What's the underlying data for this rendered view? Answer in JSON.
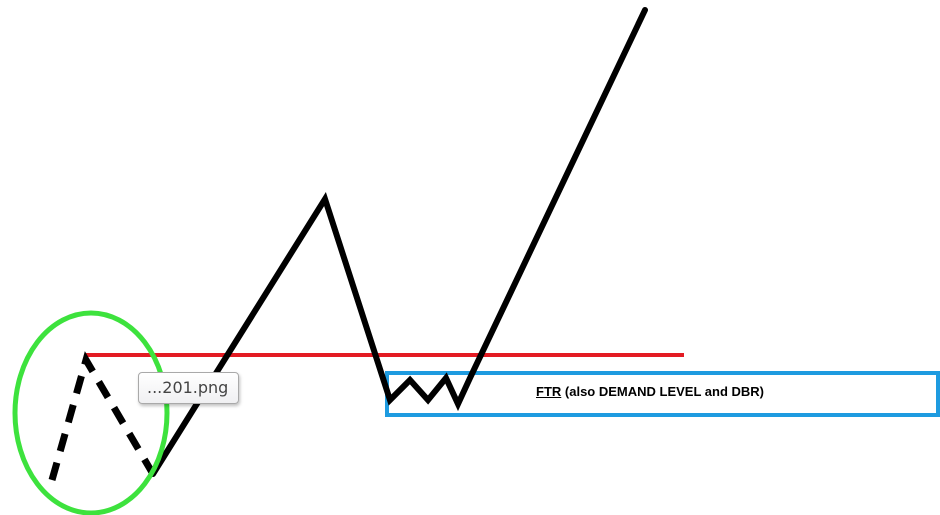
{
  "tooltip": {
    "filename": "...201.png"
  },
  "zone": {
    "abbr": "FTR",
    "description": " (also DEMAND LEVEL and DBR)"
  },
  "colors": {
    "price_line": "#000000",
    "level_line": "#e31b23",
    "zone_box": "#1e9be0",
    "highlight_circle": "#3de23d"
  }
}
